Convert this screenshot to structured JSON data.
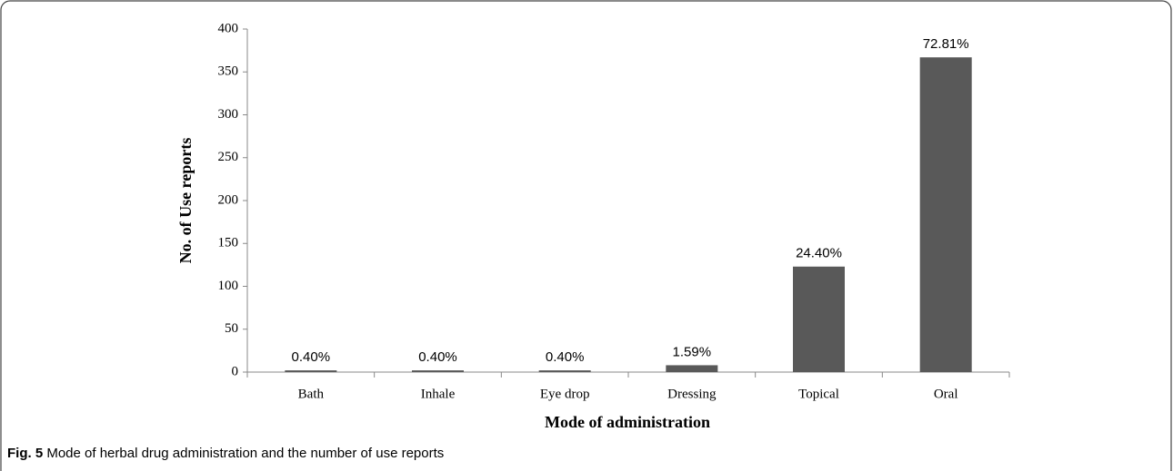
{
  "chart_data": {
    "type": "bar",
    "caption_label": "Fig. 5",
    "caption": "Mode of herbal drug administration and the number of use reports",
    "xlabel": "Mode of administration",
    "ylabel": "No. of Use reports",
    "categories": [
      "Bath",
      "Inhale",
      "Eye drop",
      "Dressing",
      "Topical",
      "Oral"
    ],
    "values": [
      2,
      2,
      2,
      8,
      123,
      367
    ],
    "bar_labels": [
      "0.40%",
      "0.40%",
      "0.40%",
      "1.59%",
      "24.40%",
      "72.81%"
    ],
    "color": "#595959",
    "ylim": [
      0,
      400
    ],
    "yticks": [
      0,
      50,
      100,
      150,
      200,
      250,
      300,
      350,
      400
    ],
    "grid": false
  }
}
